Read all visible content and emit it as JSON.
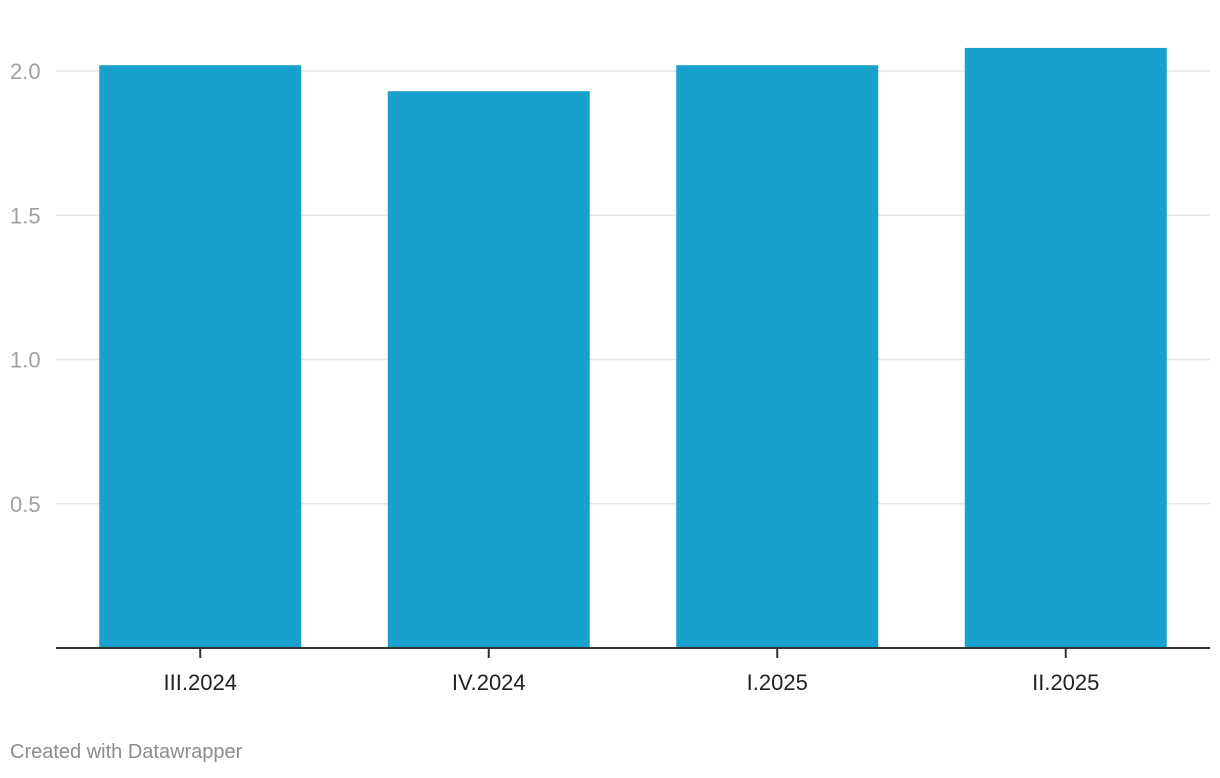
{
  "chart_data": {
    "type": "bar",
    "categories": [
      "III.2024",
      "IV.2024",
      "I.2025",
      "II.2025"
    ],
    "values": [
      2.02,
      1.93,
      2.02,
      2.08
    ],
    "yticks": [
      "0.5",
      "1.0",
      "1.5",
      "2.0"
    ],
    "ytick_values": [
      0.5,
      1.0,
      1.5,
      2.0
    ],
    "ylim": [
      0,
      2.2
    ],
    "grid": true,
    "bar_color": "#18a1cd"
  },
  "footer": {
    "credit": "Created with Datawrapper"
  }
}
